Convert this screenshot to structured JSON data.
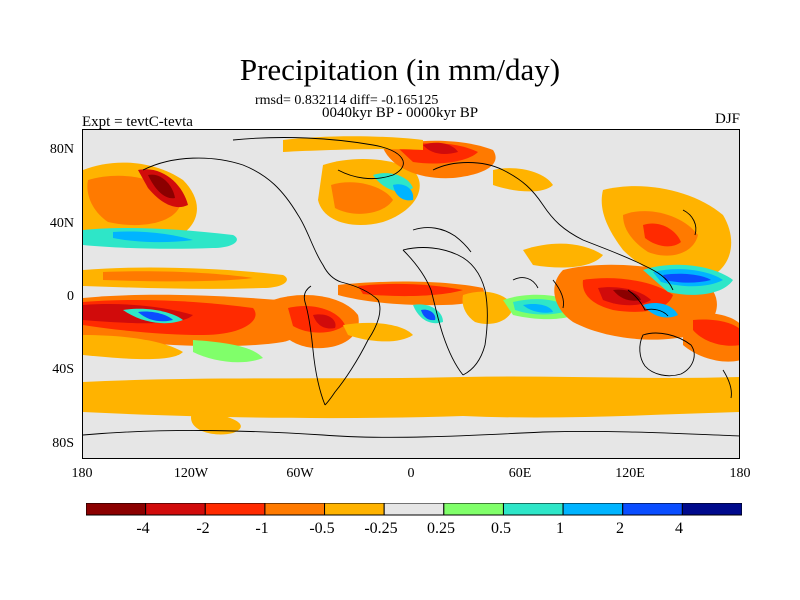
{
  "title": "Precipitation (in mm/day)",
  "stats": "rmsd= 0.832114 diff= -0.165125",
  "period": "0040kyr BP - 0000kyr BP",
  "experiment": "Expt = tevtC-tevta",
  "season": "DJF",
  "lat_labels": [
    "80N",
    "40N",
    "0",
    "40S",
    "80S"
  ],
  "lon_labels": [
    "180",
    "120W",
    "60W",
    "0",
    "60E",
    "120E",
    "180"
  ],
  "legend": {
    "colors": [
      "#8b0000",
      "#d10b0b",
      "#ff2a00",
      "#ff7a00",
      "#ffb300",
      "#e6e6e6",
      "#80ff6a",
      "#2ee6c8",
      "#00b4ff",
      "#0a4dff",
      "#000a8c"
    ],
    "labels": [
      "-4",
      "-2",
      "-1",
      "-0.5",
      "-0.25",
      "0.25",
      "0.5",
      "1",
      "2",
      "4"
    ]
  }
}
